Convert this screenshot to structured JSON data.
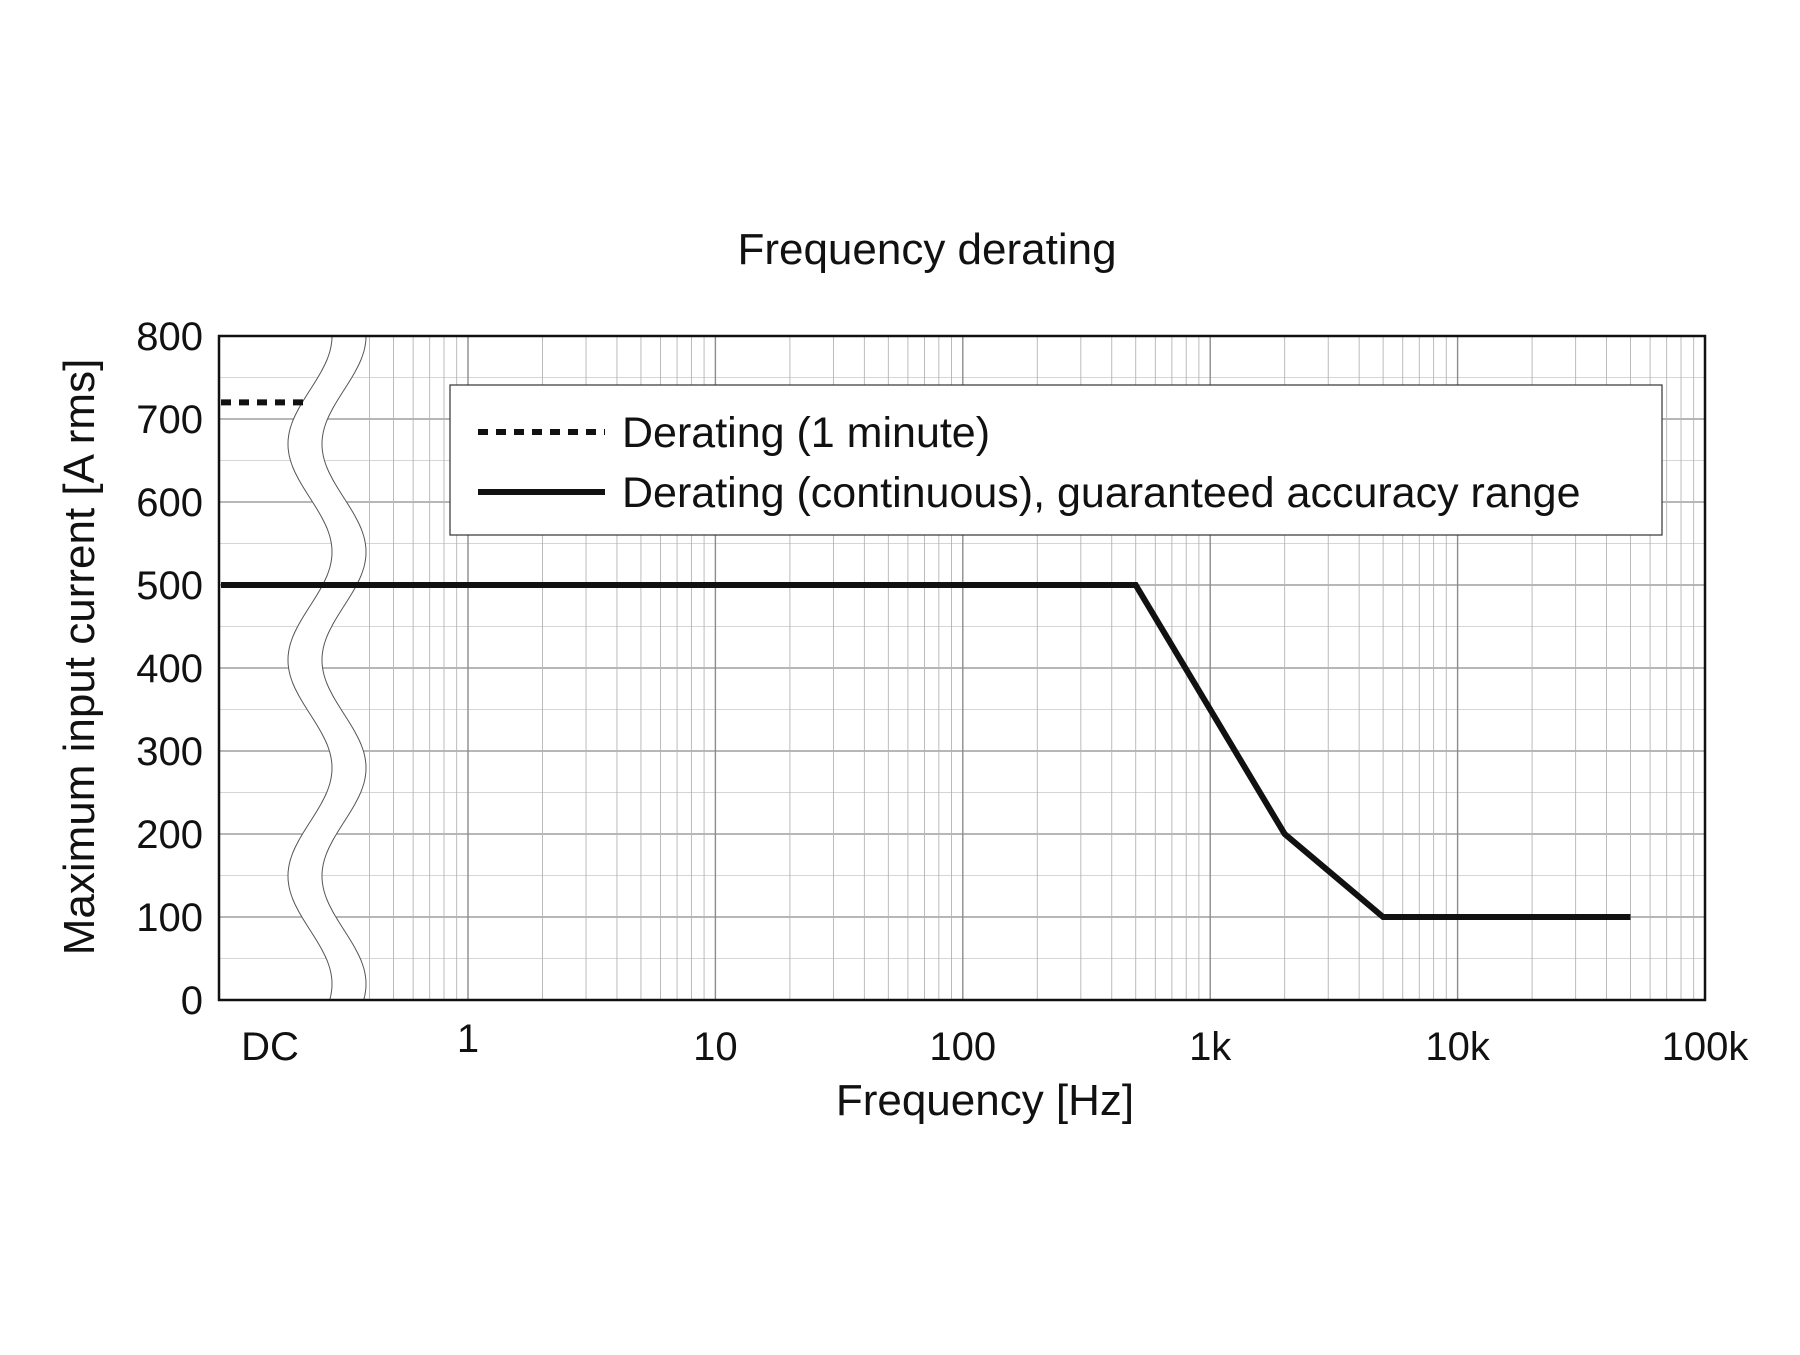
{
  "chart_data": {
    "type": "line",
    "title": "Frequency derating",
    "xlabel": "Frequency [Hz]",
    "ylabel": "Maximum input current [A rms]",
    "x_scale": "log",
    "x_axis_break": "DC",
    "xlim": [
      0.35,
      100000
    ],
    "ylim": [
      0,
      800
    ],
    "grid": true,
    "legend_placement": "top-right",
    "x_tick_labels": [
      "DC",
      "1",
      "10",
      "100",
      "1k",
      "10k",
      "100k"
    ],
    "x_tick_values": [
      null,
      1,
      10,
      100,
      1000,
      10000,
      100000
    ],
    "y_tick_labels": [
      "0",
      "100",
      "200",
      "300",
      "400",
      "500",
      "600",
      "700",
      "800"
    ],
    "y_tick_values": [
      0,
      100,
      200,
      300,
      400,
      500,
      600,
      700,
      800
    ],
    "series": [
      {
        "name": "Derating (1 minute)",
        "style": "dotted",
        "points": [
          {
            "x": "DC",
            "y": 720
          }
        ]
      },
      {
        "name": "Derating (continuous), guaranteed accuracy range",
        "style": "solid",
        "points": [
          {
            "x": "DC",
            "y": 500
          },
          {
            "x": 500,
            "y": 500
          },
          {
            "x": 2000,
            "y": 200
          },
          {
            "x": 5000,
            "y": 100
          },
          {
            "x": 50000,
            "y": 100
          }
        ]
      }
    ],
    "colors": {
      "line": "#111111",
      "grid": "#8c8c8c",
      "frame": "#111111"
    }
  }
}
